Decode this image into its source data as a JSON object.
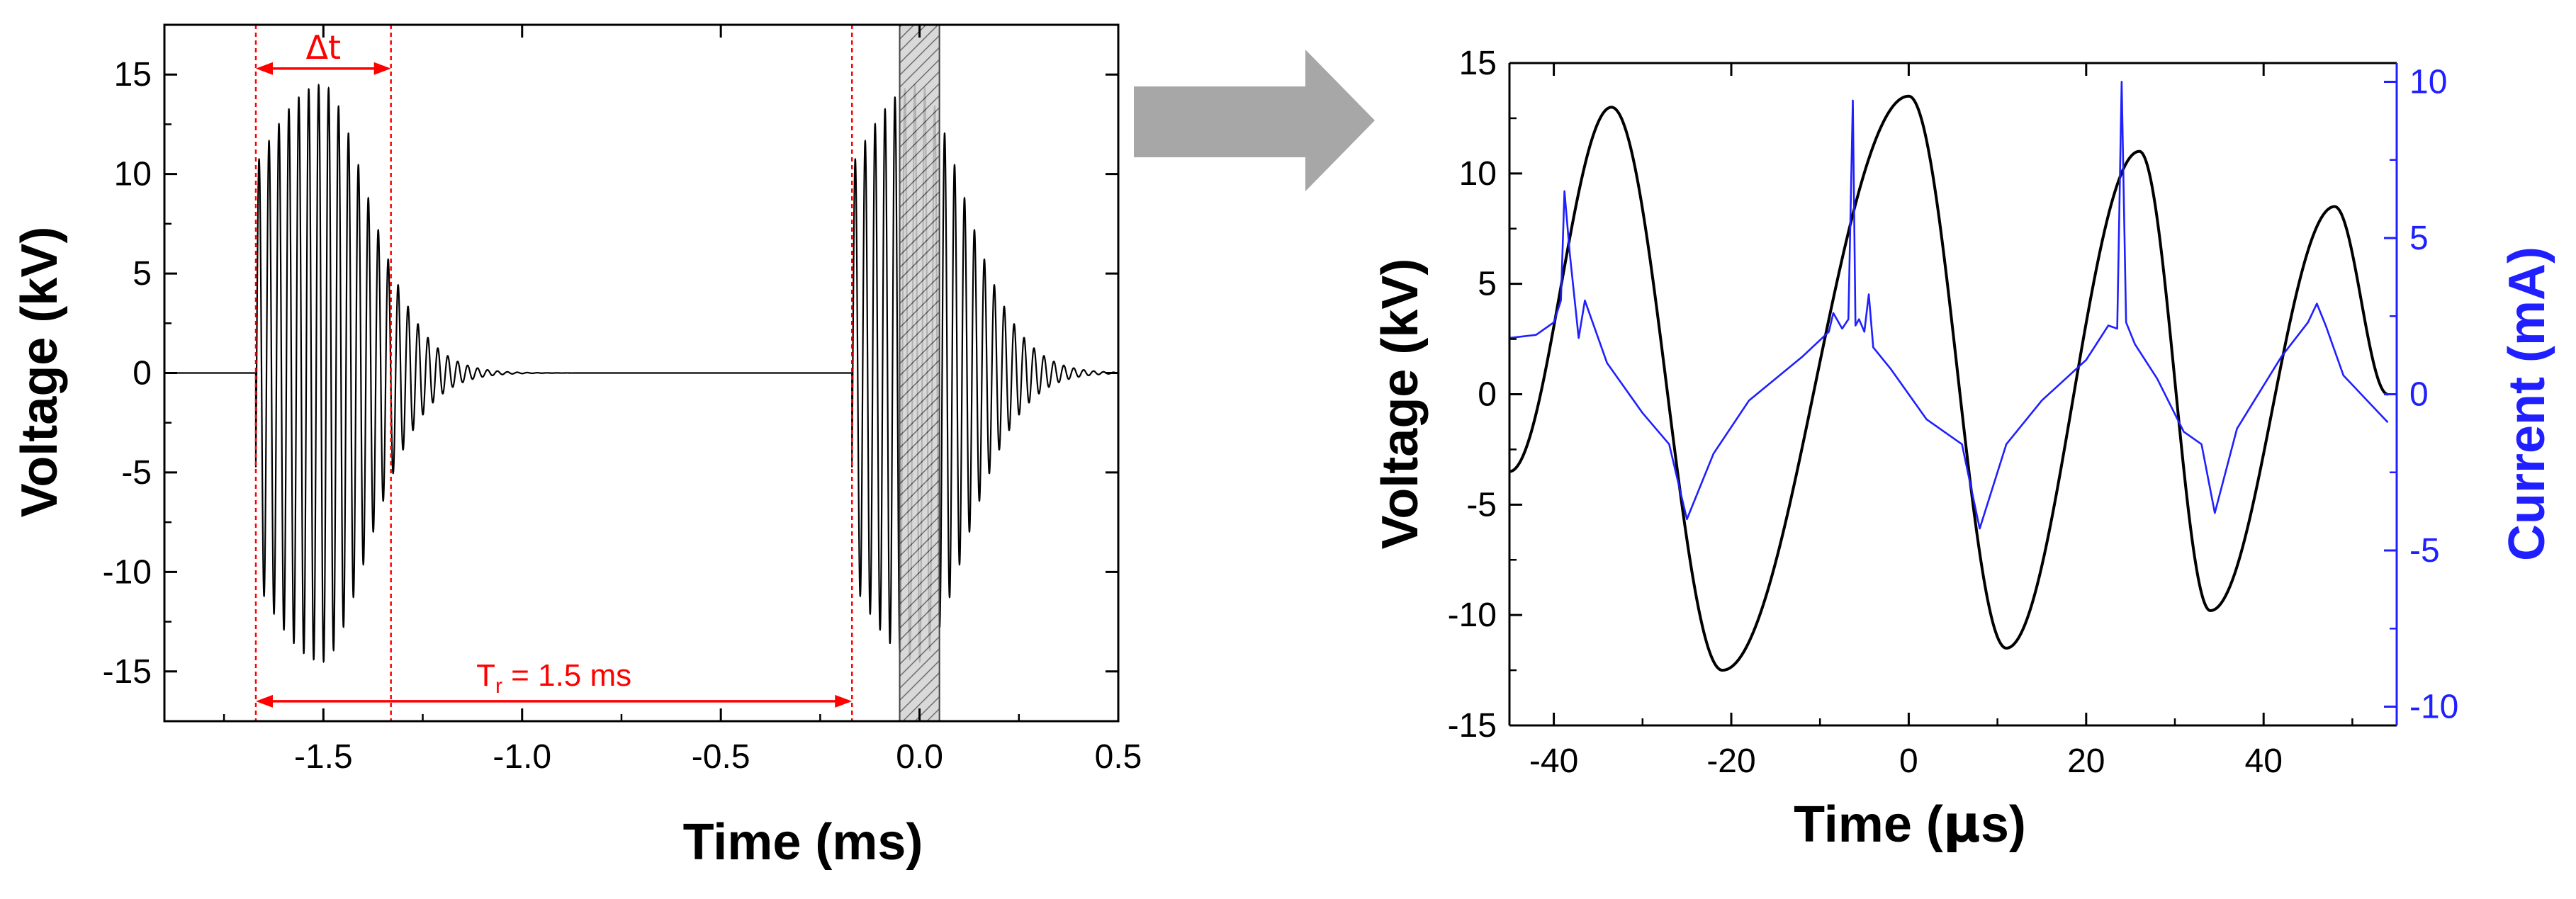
{
  "chart_data": [
    {
      "type": "line",
      "title": "",
      "xlabel": "Time (ms)",
      "ylabel": "Voltage (kV)",
      "xlim": [
        -1.9,
        0.5
      ],
      "ylim": [
        -17.5,
        17.5
      ],
      "xticks": [
        -1.5,
        -1.0,
        -0.5,
        0.0,
        0.5
      ],
      "xtick_labels": [
        "-1.5",
        "-1.0",
        "-0.5",
        "0.0",
        "0.5"
      ],
      "yticks": [
        -15,
        -10,
        -5,
        0,
        5,
        10,
        15
      ],
      "ytick_labels": [
        "-15",
        "-10",
        "-5",
        "0",
        "5",
        "10",
        "15"
      ],
      "grid": false,
      "series": [
        {
          "color": "#000000",
          "description": "damped oscillation bursts",
          "bursts": [
            {
              "start_ms": -1.67,
              "peak_ms": -1.5,
              "peak_kV": 14.5,
              "end_ms": -0.3
            },
            {
              "start_ms": -0.17,
              "peak_ms": 0.0,
              "peak_kV": 14.5,
              "end_ms": 0.5
            }
          ],
          "cycles_per_ms": 40
        }
      ],
      "annotations": {
        "delta_t": {
          "label": "Δt",
          "x_start_ms": -1.67,
          "x_end_ms": -1.33,
          "y_kV": 15.3,
          "color": "#ff0000"
        },
        "repetition_period": {
          "label_main": "T",
          "label_sub": "r",
          "label_rest": " = 1.5 ms",
          "x_start_ms": -1.67,
          "x_end_ms": -0.17,
          "y_kV": -16.5,
          "color": "#ff0000"
        },
        "vlines_ms": [
          -1.67,
          -1.33,
          -0.17
        ],
        "hatched_window_ms": [
          -0.05,
          0.05
        ]
      }
    },
    {
      "type": "line",
      "title": "",
      "xlabel": "Time (μs)",
      "xlabel_parts": [
        "Time (",
        "μ",
        "s)"
      ],
      "ylabel": "Voltage (kV)",
      "ylabel_right": "Current (mA)",
      "xlim": [
        -45,
        55
      ],
      "ylim": [
        -15,
        15
      ],
      "ylim_right": [
        -10.6,
        10.6
      ],
      "xticks": [
        -40,
        -20,
        0,
        20,
        40
      ],
      "xtick_labels": [
        "-40",
        "-20",
        "0",
        "20",
        "40"
      ],
      "yticks": [
        -15,
        -10,
        -5,
        0,
        5,
        10,
        15
      ],
      "ytick_labels": [
        "-15",
        "-10",
        "-5",
        "0",
        "5",
        "10",
        "15"
      ],
      "yticks_right": [
        -10,
        -5,
        0,
        5,
        10
      ],
      "ytick_right_labels": [
        "-10",
        "-5",
        "0",
        "5",
        "10"
      ],
      "grid": false,
      "series": [
        {
          "axis": "left",
          "color": "#000000",
          "x": [
            -45,
            -33.5,
            -21,
            0,
            11,
            26,
            34,
            48,
            54
          ],
          "y": [
            -3.5,
            13.0,
            -12.5,
            13.5,
            -11.5,
            11.0,
            -9.8,
            8.5,
            0.0
          ]
        },
        {
          "axis": "right",
          "color": "#1f1fff",
          "x": [
            -45,
            -42,
            -40,
            -39.2,
            -38.8,
            -38.2,
            -37.2,
            -36.5,
            -34,
            -30,
            -27,
            -25,
            -22,
            -18,
            -12,
            -9,
            -8.5,
            -7.5,
            -6.8,
            -6.3,
            -6.0,
            -5.6,
            -5.0,
            -4.5,
            -4.0,
            -2,
            2,
            6,
            8,
            11,
            15,
            20,
            22.5,
            23.5,
            24.0,
            24.5,
            25.5,
            28,
            31,
            33,
            34.5,
            37,
            42,
            45,
            46,
            47,
            49,
            52,
            54
          ],
          "y": [
            1.8,
            1.9,
            2.3,
            3.0,
            6.5,
            4.5,
            1.8,
            3.0,
            1.0,
            -0.6,
            -1.6,
            -4.0,
            -1.9,
            -0.2,
            1.2,
            2.0,
            2.6,
            2.1,
            2.4,
            9.4,
            2.2,
            2.4,
            2.0,
            3.2,
            1.5,
            0.8,
            -0.8,
            -1.6,
            -4.3,
            -1.6,
            -0.2,
            1.1,
            2.2,
            2.1,
            10.0,
            2.3,
            1.6,
            0.5,
            -1.2,
            -1.6,
            -3.8,
            -1.1,
            1.2,
            2.3,
            2.9,
            2.2,
            0.6,
            -0.3,
            -0.9
          ]
        }
      ]
    }
  ]
}
